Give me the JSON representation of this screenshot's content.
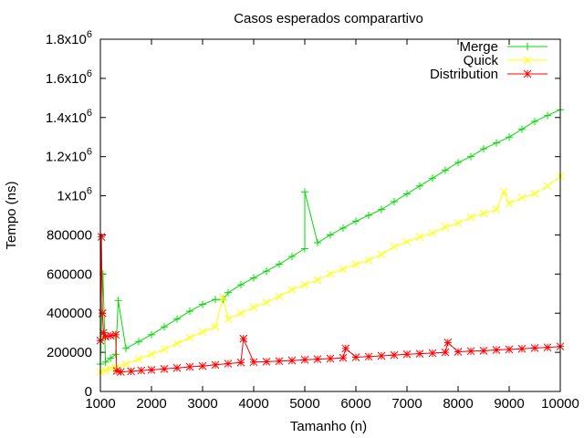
{
  "chart_data": {
    "type": "scatter",
    "title": "Casos esperados comparartivo",
    "xlabel": "Tamanho (n)",
    "ylabel": "Tempo (ns)",
    "xlim": [
      1000,
      10000
    ],
    "ylim": [
      0,
      1800000
    ],
    "xticks": [
      {
        "value": 1000,
        "label": "1000"
      },
      {
        "value": 2000,
        "label": "2000"
      },
      {
        "value": 3000,
        "label": "3000"
      },
      {
        "value": 4000,
        "label": "4000"
      },
      {
        "value": 5000,
        "label": "5000"
      },
      {
        "value": 6000,
        "label": "6000"
      },
      {
        "value": 7000,
        "label": "7000"
      },
      {
        "value": 8000,
        "label": "8000"
      },
      {
        "value": 9000,
        "label": "9000"
      },
      {
        "value": 10000,
        "label": "10000"
      }
    ],
    "yticks": [
      {
        "value": 0,
        "label": "0"
      },
      {
        "value": 200000,
        "label": "200000"
      },
      {
        "value": 400000,
        "label": "400000"
      },
      {
        "value": 600000,
        "label": "600000"
      },
      {
        "value": 800000,
        "label": "800000"
      },
      {
        "value": 1000000,
        "label": "1x10",
        "exp": "6"
      },
      {
        "value": 1200000,
        "label": "1.2x10",
        "exp": "6"
      },
      {
        "value": 1400000,
        "label": "1.4x10",
        "exp": "6"
      },
      {
        "value": 1600000,
        "label": "1.6x10",
        "exp": "6"
      },
      {
        "value": 1800000,
        "label": "1.8x10",
        "exp": "6"
      }
    ],
    "grid": false,
    "legend_position": "top-right",
    "series": [
      {
        "name": "Merge",
        "color": "#00dd00",
        "marker": "plus",
        "points": [
          [
            1000,
            140000
          ],
          [
            1050,
            600000
          ],
          [
            1100,
            150000
          ],
          [
            1200,
            170000
          ],
          [
            1300,
            190000
          ],
          [
            1350,
            465000
          ],
          [
            1500,
            220000
          ],
          [
            1750,
            255000
          ],
          [
            2000,
            290000
          ],
          [
            2250,
            330000
          ],
          [
            2500,
            370000
          ],
          [
            2750,
            410000
          ],
          [
            3000,
            445000
          ],
          [
            3250,
            470000
          ],
          [
            3400,
            470000
          ],
          [
            3500,
            505000
          ],
          [
            3750,
            545000
          ],
          [
            4000,
            580000
          ],
          [
            4250,
            615000
          ],
          [
            4500,
            650000
          ],
          [
            4750,
            690000
          ],
          [
            5000,
            730000
          ],
          [
            5000,
            1020000
          ],
          [
            5250,
            760000
          ],
          [
            5500,
            800000
          ],
          [
            5750,
            835000
          ],
          [
            6000,
            870000
          ],
          [
            6250,
            900000
          ],
          [
            6500,
            930000
          ],
          [
            6750,
            970000
          ],
          [
            7000,
            1010000
          ],
          [
            7250,
            1050000
          ],
          [
            7500,
            1090000
          ],
          [
            7750,
            1130000
          ],
          [
            8000,
            1170000
          ],
          [
            8250,
            1200000
          ],
          [
            8500,
            1240000
          ],
          [
            8750,
            1270000
          ],
          [
            9000,
            1300000
          ],
          [
            9250,
            1340000
          ],
          [
            9500,
            1380000
          ],
          [
            9750,
            1410000
          ],
          [
            10000,
            1440000
          ]
        ]
      },
      {
        "name": "Quick",
        "color": "#ffff00",
        "marker": "cross",
        "points": [
          [
            1000,
            100000
          ],
          [
            1100,
            108000
          ],
          [
            1200,
            118000
          ],
          [
            1300,
            125000
          ],
          [
            1500,
            140000
          ],
          [
            1750,
            165000
          ],
          [
            2000,
            190000
          ],
          [
            2250,
            215000
          ],
          [
            2500,
            245000
          ],
          [
            2750,
            275000
          ],
          [
            3000,
            305000
          ],
          [
            3250,
            330000
          ],
          [
            3400,
            480000
          ],
          [
            3500,
            370000
          ],
          [
            3750,
            400000
          ],
          [
            4000,
            430000
          ],
          [
            4250,
            455000
          ],
          [
            4500,
            485000
          ],
          [
            4750,
            520000
          ],
          [
            5000,
            545000
          ],
          [
            5250,
            570000
          ],
          [
            5500,
            600000
          ],
          [
            5750,
            625000
          ],
          [
            6000,
            650000
          ],
          [
            6250,
            670000
          ],
          [
            6500,
            700000
          ],
          [
            6750,
            740000
          ],
          [
            7000,
            765000
          ],
          [
            7250,
            790000
          ],
          [
            7500,
            810000
          ],
          [
            7750,
            840000
          ],
          [
            8000,
            860000
          ],
          [
            8250,
            890000
          ],
          [
            8500,
            910000
          ],
          [
            8750,
            930000
          ],
          [
            8900,
            1020000
          ],
          [
            9000,
            960000
          ],
          [
            9250,
            990000
          ],
          [
            9500,
            1010000
          ],
          [
            9750,
            1050000
          ],
          [
            10000,
            1100000
          ]
        ]
      },
      {
        "name": "Distribution",
        "color": "#ff0000",
        "marker": "star",
        "points": [
          [
            1000,
            260000
          ],
          [
            1020,
            790000
          ],
          [
            1040,
            400000
          ],
          [
            1060,
            300000
          ],
          [
            1100,
            280000
          ],
          [
            1200,
            285000
          ],
          [
            1300,
            290000
          ],
          [
            1320,
            105000
          ],
          [
            1400,
            100000
          ],
          [
            1600,
            103000
          ],
          [
            1800,
            107000
          ],
          [
            2000,
            110000
          ],
          [
            2250,
            115000
          ],
          [
            2500,
            120000
          ],
          [
            2750,
            126000
          ],
          [
            3000,
            130000
          ],
          [
            3250,
            136000
          ],
          [
            3500,
            142000
          ],
          [
            3750,
            148000
          ],
          [
            3800,
            270000
          ],
          [
            4000,
            150000
          ],
          [
            4250,
            152000
          ],
          [
            4500,
            155000
          ],
          [
            4750,
            158000
          ],
          [
            5000,
            162000
          ],
          [
            5250,
            165000
          ],
          [
            5500,
            168000
          ],
          [
            5750,
            172000
          ],
          [
            5800,
            220000
          ],
          [
            6000,
            175000
          ],
          [
            6250,
            178000
          ],
          [
            6500,
            182000
          ],
          [
            6750,
            186000
          ],
          [
            7000,
            190000
          ],
          [
            7250,
            193000
          ],
          [
            7500,
            196000
          ],
          [
            7750,
            200000
          ],
          [
            7800,
            250000
          ],
          [
            8000,
            203000
          ],
          [
            8250,
            206000
          ],
          [
            8500,
            208000
          ],
          [
            8750,
            212000
          ],
          [
            9000,
            215000
          ],
          [
            9250,
            218000
          ],
          [
            9500,
            222000
          ],
          [
            9750,
            225000
          ],
          [
            10000,
            230000
          ]
        ]
      }
    ]
  }
}
